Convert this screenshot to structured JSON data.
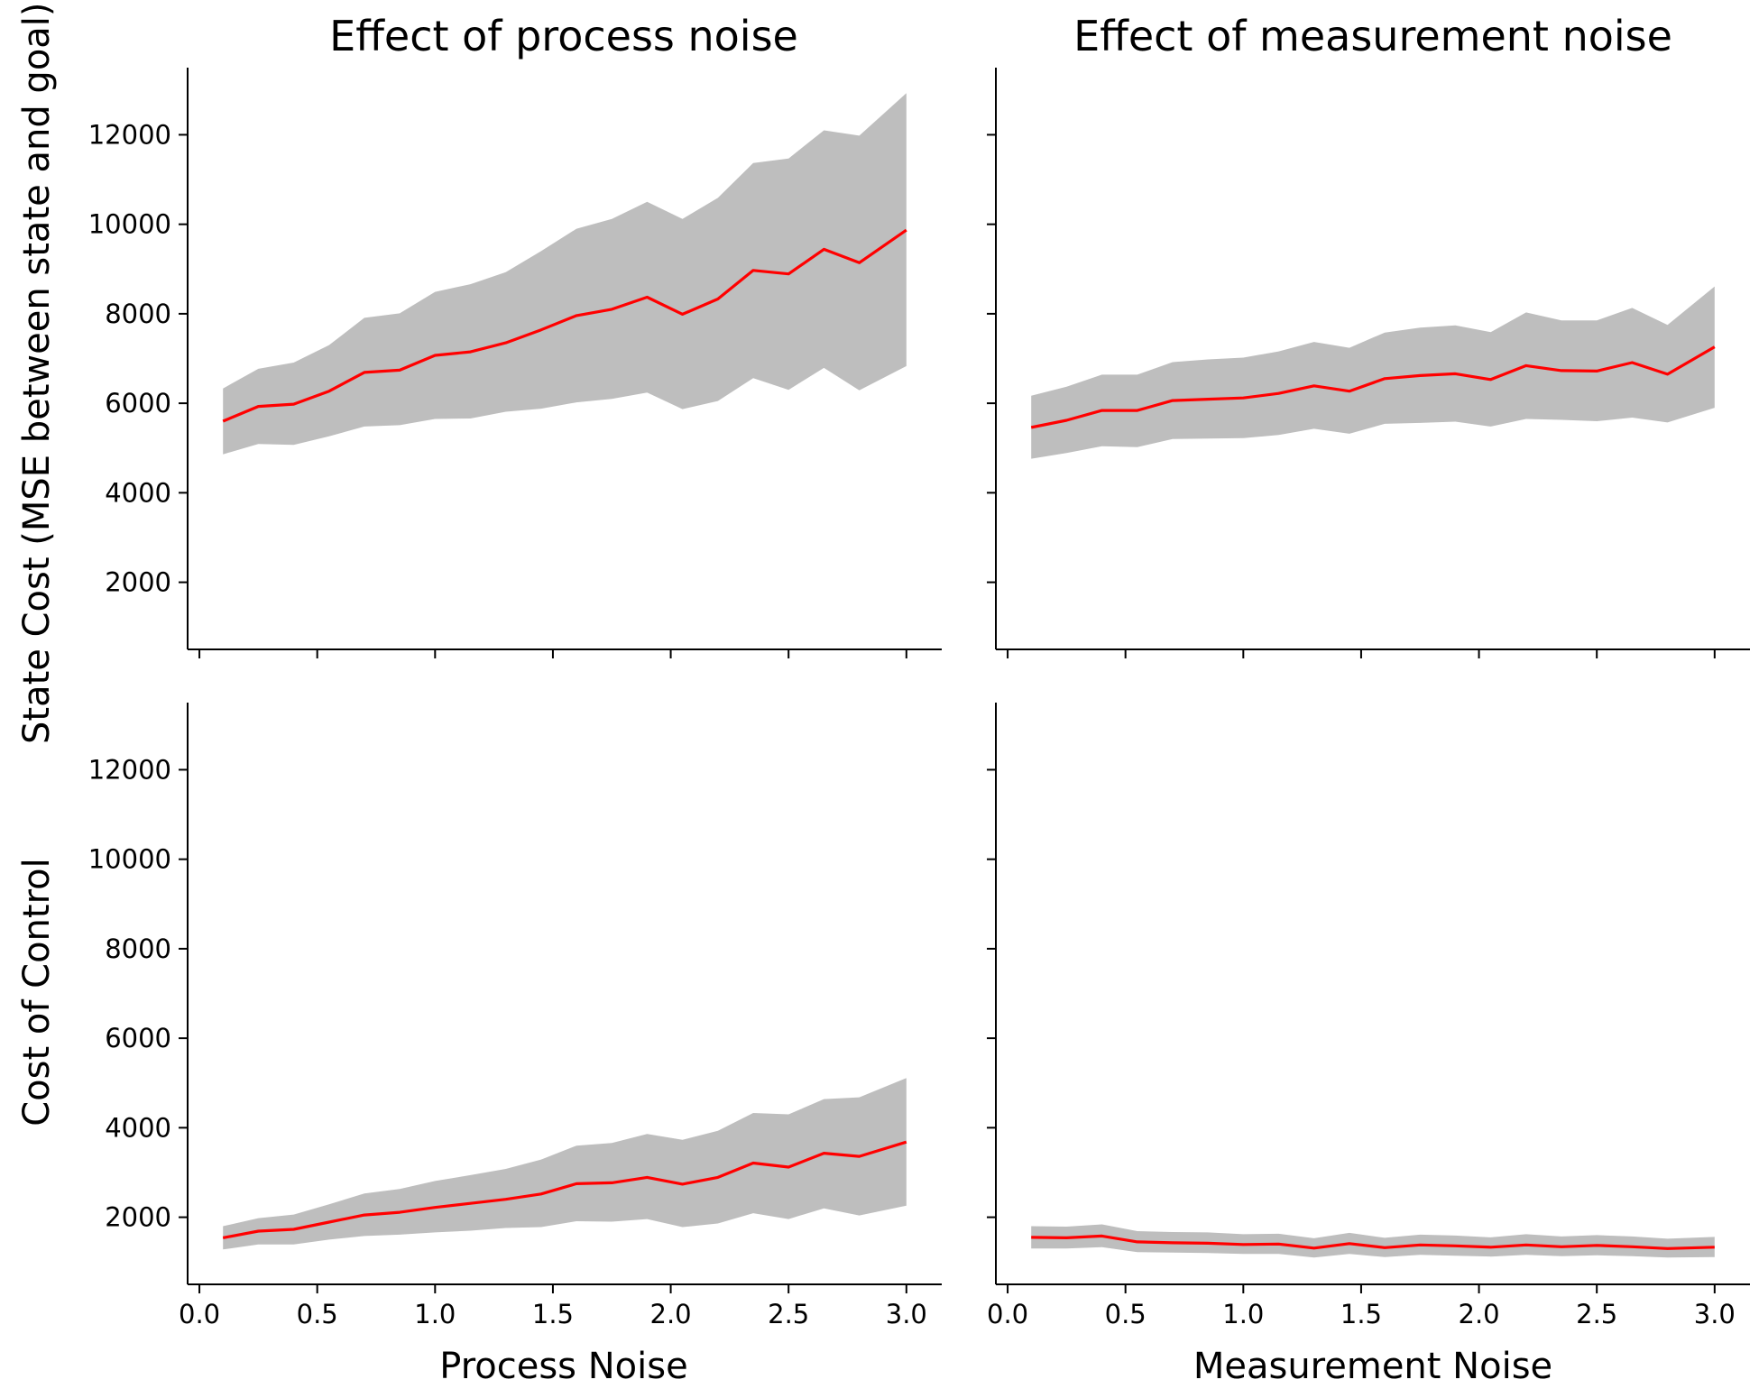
{
  "colors": {
    "line": "#ff0000",
    "band": "#bebebe",
    "axis": "#000000"
  },
  "labels": {
    "title_process": "Effect of process noise",
    "title_measurement": "Effect of measurement noise",
    "xlabel_process": "Process Noise",
    "xlabel_measurement": "Measurement Noise",
    "ylabel_state": "State Cost (MSE between state and goal)",
    "ylabel_control": "Cost of Control"
  },
  "chart_data": [
    {
      "type": "area",
      "title": "Effect of process noise",
      "xlabel": "",
      "ylabel": "State Cost (MSE between state and goal)",
      "xlim": [
        -0.05,
        3.15
      ],
      "ylim": [
        500,
        13500
      ],
      "xticks": [
        "0.0",
        "0.5",
        "1.0",
        "1.5",
        "2.0",
        "2.5",
        "3.0"
      ],
      "yticks": [
        "2000",
        "4000",
        "6000",
        "8000",
        "10000",
        "12000"
      ],
      "show_xtick_labels": false,
      "show_ytick_labels": true,
      "x": [
        0.1,
        0.25,
        0.4,
        0.55,
        0.7,
        0.85,
        1.0,
        1.15,
        1.3,
        1.45,
        1.6,
        1.75,
        1.9,
        2.05,
        2.2,
        2.35,
        2.5,
        2.65,
        2.8,
        3.0
      ],
      "mean": [
        5600,
        5930,
        5980,
        6270,
        6690,
        6740,
        7070,
        7150,
        7350,
        7640,
        7960,
        8100,
        8370,
        7990,
        8330,
        8970,
        8890,
        9440,
        9140,
        9870
      ],
      "lower": [
        4860,
        5090,
        5070,
        5260,
        5480,
        5510,
        5650,
        5660,
        5810,
        5880,
        6020,
        6100,
        6240,
        5870,
        6050,
        6560,
        6300,
        6790,
        6290,
        6830
      ],
      "upper": [
        6330,
        6770,
        6910,
        7300,
        7910,
        8010,
        8490,
        8660,
        8930,
        9400,
        9900,
        10120,
        10500,
        10120,
        10590,
        11370,
        11470,
        12100,
        11980,
        12930
      ]
    },
    {
      "type": "area",
      "title": "Effect of measurement noise",
      "xlabel": "",
      "ylabel": "",
      "xlim": [
        -0.05,
        3.15
      ],
      "ylim": [
        500,
        13500
      ],
      "xticks": [
        "0.0",
        "0.5",
        "1.0",
        "1.5",
        "2.0",
        "2.5",
        "3.0"
      ],
      "yticks": [
        "2000",
        "4000",
        "6000",
        "8000",
        "10000",
        "12000"
      ],
      "show_xtick_labels": false,
      "show_ytick_labels": false,
      "x": [
        0.1,
        0.25,
        0.4,
        0.55,
        0.7,
        0.85,
        1.0,
        1.15,
        1.3,
        1.45,
        1.6,
        1.75,
        1.9,
        2.05,
        2.2,
        2.35,
        2.5,
        2.65,
        2.8,
        3.0
      ],
      "mean": [
        5460,
        5620,
        5840,
        5840,
        6060,
        6090,
        6120,
        6220,
        6390,
        6270,
        6550,
        6620,
        6660,
        6530,
        6840,
        6730,
        6720,
        6910,
        6650,
        7260
      ],
      "lower": [
        4760,
        4890,
        5040,
        5020,
        5200,
        5210,
        5220,
        5290,
        5430,
        5320,
        5540,
        5560,
        5590,
        5480,
        5650,
        5630,
        5600,
        5680,
        5570,
        5900
      ],
      "upper": [
        6170,
        6370,
        6640,
        6640,
        6920,
        6980,
        7020,
        7160,
        7370,
        7240,
        7580,
        7690,
        7740,
        7590,
        8030,
        7850,
        7850,
        8130,
        7750,
        8610
      ]
    },
    {
      "type": "area",
      "title": "",
      "xlabel": "Process Noise",
      "ylabel": "Cost of Control",
      "xlim": [
        -0.05,
        3.15
      ],
      "ylim": [
        500,
        13500
      ],
      "xticks": [
        "0.0",
        "0.5",
        "1.0",
        "1.5",
        "2.0",
        "2.5",
        "3.0"
      ],
      "yticks": [
        "2000",
        "4000",
        "6000",
        "8000",
        "10000",
        "12000"
      ],
      "show_xtick_labels": true,
      "show_ytick_labels": true,
      "x": [
        0.1,
        0.25,
        0.4,
        0.55,
        0.7,
        0.85,
        1.0,
        1.15,
        1.3,
        1.45,
        1.6,
        1.75,
        1.9,
        2.05,
        2.2,
        2.35,
        2.5,
        2.65,
        2.8,
        3.0
      ],
      "mean": [
        1540,
        1690,
        1730,
        1890,
        2050,
        2110,
        2220,
        2310,
        2400,
        2520,
        2750,
        2770,
        2890,
        2740,
        2890,
        3210,
        3120,
        3430,
        3360,
        3680
      ],
      "lower": [
        1280,
        1390,
        1390,
        1500,
        1580,
        1610,
        1660,
        1700,
        1760,
        1780,
        1910,
        1900,
        1960,
        1780,
        1860,
        2090,
        1960,
        2200,
        2040,
        2260
      ],
      "upper": [
        1800,
        1980,
        2060,
        2290,
        2530,
        2630,
        2810,
        2940,
        3080,
        3290,
        3600,
        3660,
        3860,
        3730,
        3930,
        4330,
        4300,
        4640,
        4680,
        5110
      ]
    },
    {
      "type": "area",
      "title": "",
      "xlabel": "Measurement Noise",
      "ylabel": "",
      "xlim": [
        -0.05,
        3.15
      ],
      "ylim": [
        500,
        13500
      ],
      "xticks": [
        "0.0",
        "0.5",
        "1.0",
        "1.5",
        "2.0",
        "2.5",
        "3.0"
      ],
      "yticks": [
        "2000",
        "4000",
        "6000",
        "8000",
        "10000",
        "12000"
      ],
      "show_xtick_labels": true,
      "show_ytick_labels": false,
      "x": [
        0.1,
        0.25,
        0.4,
        0.55,
        0.7,
        0.85,
        1.0,
        1.15,
        1.3,
        1.45,
        1.6,
        1.75,
        1.9,
        2.05,
        2.2,
        2.35,
        2.5,
        2.65,
        2.8,
        3.0
      ],
      "mean": [
        1550,
        1540,
        1580,
        1450,
        1430,
        1420,
        1390,
        1400,
        1310,
        1410,
        1320,
        1380,
        1360,
        1330,
        1380,
        1340,
        1370,
        1340,
        1300,
        1330
      ],
      "lower": [
        1300,
        1300,
        1330,
        1220,
        1210,
        1200,
        1180,
        1180,
        1100,
        1180,
        1110,
        1160,
        1140,
        1120,
        1160,
        1130,
        1150,
        1130,
        1100,
        1110
      ],
      "upper": [
        1800,
        1790,
        1840,
        1690,
        1670,
        1660,
        1620,
        1630,
        1530,
        1650,
        1540,
        1610,
        1590,
        1550,
        1620,
        1570,
        1600,
        1570,
        1520,
        1560
      ]
    }
  ]
}
